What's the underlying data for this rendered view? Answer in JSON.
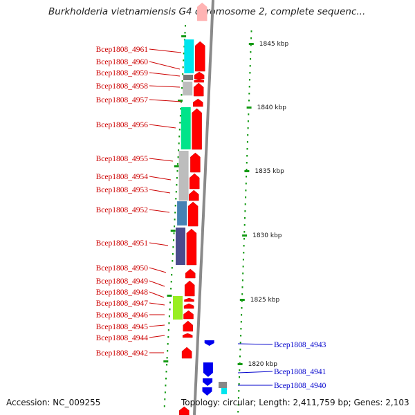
{
  "title": "Burkholderia vietnamiensis G4 chromosome 2, complete sequenc...",
  "footer": {
    "accession": "Accession: NC_009255",
    "summary": "Topology: circular; Length: 2,411,759 bp; Genes: 2,103"
  },
  "colors": {
    "forward_label": "#cc0000",
    "reverse_label": "#0000cc",
    "forward_gene": "#ff0000",
    "reverse_gene": "#0000ee",
    "backbone": "#8a8a8a",
    "ruler_tick": "#119911"
  },
  "kbp_ticks": [
    "1845 kbp",
    "1840 kbp",
    "1835 kbp",
    "1830 kbp",
    "1825 kbp",
    "1820 kbp"
  ],
  "left_labels": [
    "Bcep1808_4961",
    "Bcep1808_4960",
    "Bcep1808_4959",
    "Bcep1808_4958",
    "Bcep1808_4957",
    "Bcep1808_4956",
    "Bcep1808_4955",
    "Bcep1808_4954",
    "Bcep1808_4953",
    "Bcep1808_4952",
    "Bcep1808_4951",
    "Bcep1808_4950",
    "Bcep1808_4949",
    "Bcep1808_4948",
    "Bcep1808_4947",
    "Bcep1808_4946",
    "Bcep1808_4945",
    "Bcep1808_4944",
    "Bcep1808_4942"
  ],
  "right_labels": [
    "Bcep1808_4943",
    "Bcep1808_4941",
    "Bcep1808_4940"
  ],
  "cog_colors": [
    "#00e5ee",
    "#bdbdbd",
    "#777777",
    "#00e48a",
    "#4682b4",
    "#4b4b8c",
    "#99ee22"
  ]
}
